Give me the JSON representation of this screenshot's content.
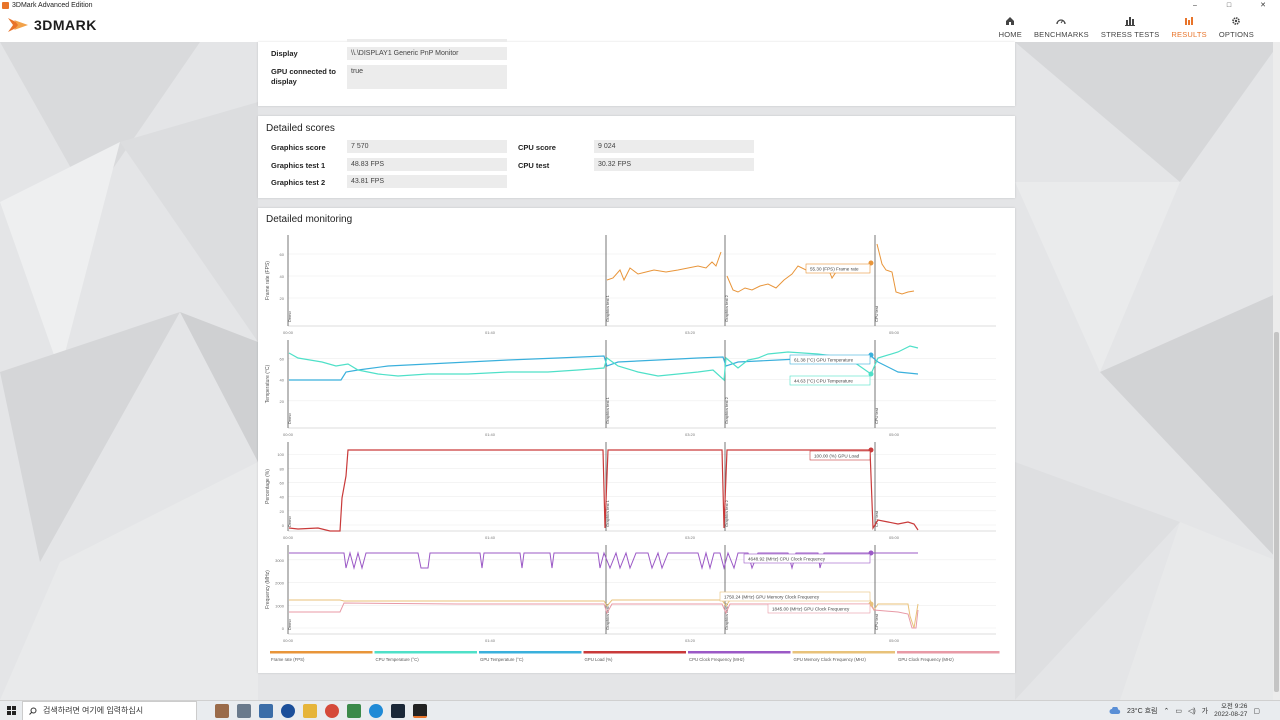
{
  "window": {
    "title": "3DMark Advanced Edition",
    "controls": [
      "–",
      "□",
      "✕"
    ]
  },
  "header": {
    "logo_text": "3DMARK",
    "nav": [
      {
        "label": "HOME",
        "icon": "home-icon",
        "active": false
      },
      {
        "label": "BENCHMARKS",
        "icon": "gauge-icon",
        "active": false
      },
      {
        "label": "STRESS TESTS",
        "icon": "bars-icon",
        "active": false
      },
      {
        "label": "RESULTS",
        "icon": "results-icon",
        "active": true
      },
      {
        "label": "OPTIONS",
        "icon": "gear-icon",
        "active": false
      }
    ],
    "accent": "#e8742a"
  },
  "system_info": {
    "rows": [
      {
        "label": "Display",
        "value": "\\\\.\\DISPLAY1 Generic PnP Monitor"
      },
      {
        "label": "GPU connected to display",
        "value": "true"
      }
    ]
  },
  "detailed_scores": {
    "title": "Detailed scores",
    "left": [
      {
        "label": "Graphics score",
        "value": "7 570"
      },
      {
        "label": "Graphics test 1",
        "value": "48.83 FPS"
      },
      {
        "label": "Graphics test 2",
        "value": "43.81 FPS"
      }
    ],
    "right": [
      {
        "label": "CPU score",
        "value": "9 024"
      },
      {
        "label": "CPU test",
        "value": "30.32 FPS"
      }
    ]
  },
  "monitoring": {
    "title": "Detailed monitoring",
    "x_ticks": [
      "00:00",
      "01:40",
      "03:20",
      "05:00"
    ],
    "markers": [
      "Demo",
      "Graphics test 1",
      "Graphics test 2",
      "CPU test"
    ],
    "charts": [
      {
        "ylabel": "Frame rate (FPS)",
        "yticks": [
          "20",
          "40",
          "60"
        ],
        "tooltips": [
          "55.30 (FPS) Frame rate"
        ]
      },
      {
        "ylabel": "Temperature (°C)",
        "yticks": [
          "20",
          "40",
          "60"
        ],
        "tooltips": [
          "61.38 (°C) GPU Temperature",
          "44.63 (°C) CPU Temperature"
        ]
      },
      {
        "ylabel": "Percentage (%)",
        "yticks": [
          "0",
          "20",
          "40",
          "60",
          "80",
          "100"
        ],
        "tooltips": [
          "100.00 (%) GPU Load"
        ]
      },
      {
        "ylabel": "Frequency (MHz)",
        "yticks": [
          "0",
          "1000",
          "2000",
          "3000"
        ],
        "tooltips": [
          "4648.92 (MHz) CPU Clock Frequency",
          "1750.24 (MHz) GPU Memory Clock Frequency",
          "1845.00 (MHz) GPU Clock Frequency"
        ]
      }
    ],
    "legend": [
      {
        "label": "Frame rate (FPS)",
        "color": "#e8953a"
      },
      {
        "label": "CPU Temperature (°C)",
        "color": "#4fe0c8"
      },
      {
        "label": "GPU Temperature (°C)",
        "color": "#3ab0dc"
      },
      {
        "label": "GPU Load (%)",
        "color": "#c93a3a"
      },
      {
        "label": "CPU Clock Frequency (MHz)",
        "color": "#9b59c6"
      },
      {
        "label": "GPU Memory Clock Frequency (MHz)",
        "color": "#e8c27a"
      },
      {
        "label": "GPU Clock Frequency (MHz)",
        "color": "#e89aa6"
      }
    ]
  },
  "taskbar": {
    "search_placeholder": "검색하려면 여기에 입력하십시",
    "weather": "23°C 흐림",
    "time": "오전 9:26",
    "date": "2022-08-27"
  }
}
